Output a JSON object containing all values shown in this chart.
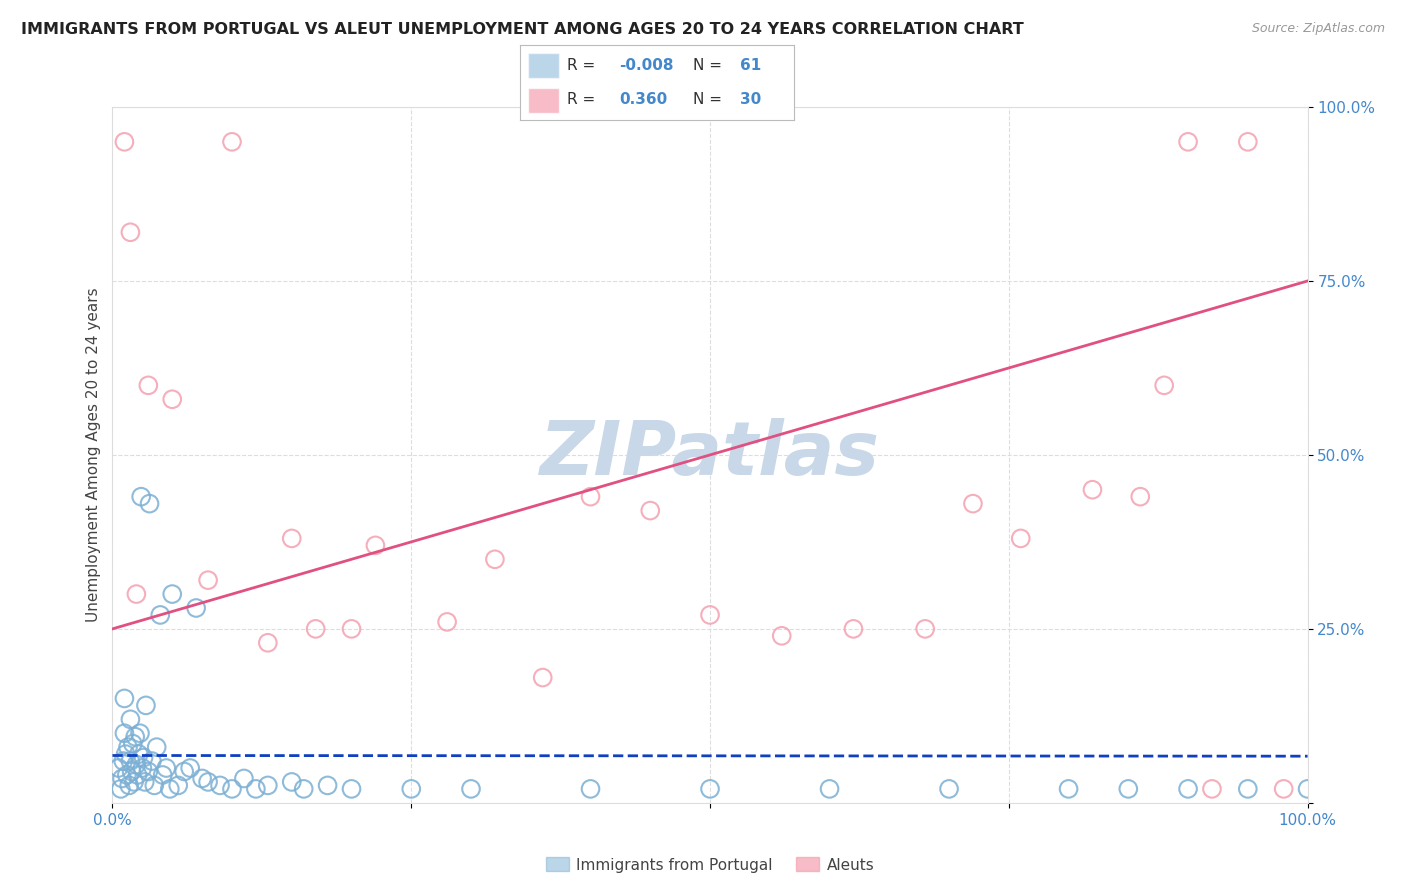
{
  "title": "IMMIGRANTS FROM PORTUGAL VS ALEUT UNEMPLOYMENT AMONG AGES 20 TO 24 YEARS CORRELATION CHART",
  "source": "Source: ZipAtlas.com",
  "ylabel": "Unemployment Among Ages 20 to 24 years",
  "blue_label": "Immigrants from Portugal",
  "pink_label": "Aleuts",
  "blue_R": -0.008,
  "blue_N": 61,
  "pink_R": 0.36,
  "pink_N": 30,
  "blue_color": "#7BAFD4",
  "pink_color": "#F4A0B0",
  "blue_edge_color": "#5B8FB4",
  "pink_edge_color": "#E07090",
  "blue_trend_color": "#1040C0",
  "pink_trend_color": "#E05080",
  "watermark_color": "#C8D8E8",
  "background_color": "#FFFFFF",
  "grid_color": "#DDDDDD",
  "title_fontsize": 11.5,
  "tick_label_color": "#4488CC",
  "blue_trend_intercept": 0.068,
  "blue_trend_slope": -0.001,
  "pink_trend_intercept": 0.25,
  "pink_trend_slope": 0.5,
  "blue_x": [
    0.005,
    0.007,
    0.008,
    0.009,
    0.01,
    0.01,
    0.011,
    0.012,
    0.013,
    0.014,
    0.015,
    0.015,
    0.016,
    0.017,
    0.018,
    0.019,
    0.02,
    0.021,
    0.022,
    0.023,
    0.024,
    0.025,
    0.026,
    0.027,
    0.028,
    0.03,
    0.031,
    0.033,
    0.035,
    0.037,
    0.04,
    0.042,
    0.045,
    0.048,
    0.05,
    0.055,
    0.06,
    0.065,
    0.07,
    0.075,
    0.08,
    0.09,
    0.1,
    0.11,
    0.12,
    0.13,
    0.15,
    0.16,
    0.18,
    0.2,
    0.25,
    0.3,
    0.4,
    0.5,
    0.6,
    0.7,
    0.8,
    0.85,
    0.9,
    0.95,
    1.0
  ],
  "blue_y": [
    0.05,
    0.02,
    0.035,
    0.06,
    0.1,
    0.15,
    0.07,
    0.04,
    0.08,
    0.025,
    0.06,
    0.12,
    0.045,
    0.085,
    0.03,
    0.095,
    0.055,
    0.04,
    0.07,
    0.1,
    0.44,
    0.05,
    0.065,
    0.03,
    0.14,
    0.045,
    0.43,
    0.06,
    0.025,
    0.08,
    0.27,
    0.04,
    0.05,
    0.02,
    0.3,
    0.025,
    0.045,
    0.05,
    0.28,
    0.035,
    0.03,
    0.025,
    0.02,
    0.035,
    0.02,
    0.025,
    0.03,
    0.02,
    0.025,
    0.02,
    0.02,
    0.02,
    0.02,
    0.02,
    0.02,
    0.02,
    0.02,
    0.02,
    0.02,
    0.02,
    0.02
  ],
  "pink_x": [
    0.01,
    0.015,
    0.02,
    0.03,
    0.05,
    0.08,
    0.1,
    0.13,
    0.15,
    0.17,
    0.2,
    0.22,
    0.28,
    0.32,
    0.36,
    0.4,
    0.45,
    0.5,
    0.56,
    0.62,
    0.68,
    0.72,
    0.76,
    0.82,
    0.86,
    0.88,
    0.9,
    0.92,
    0.95,
    0.98
  ],
  "pink_y": [
    0.95,
    0.82,
    0.3,
    0.6,
    0.58,
    0.32,
    0.95,
    0.23,
    0.38,
    0.25,
    0.25,
    0.37,
    0.26,
    0.35,
    0.18,
    0.44,
    0.42,
    0.27,
    0.24,
    0.25,
    0.25,
    0.43,
    0.38,
    0.45,
    0.44,
    0.6,
    0.95,
    0.02,
    0.95,
    0.02
  ]
}
